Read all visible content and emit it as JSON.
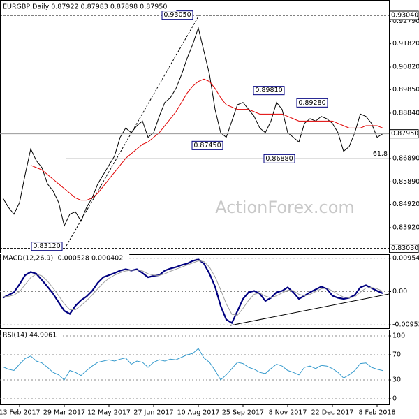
{
  "chart_data": [
    {
      "type": "line",
      "title": "EURGBP,Daily 0.87922 0.87983 0.87898 0.87950",
      "ylim": [
        0.829,
        0.9355
      ],
      "yticks": [
        {
          "value": 0.9279,
          "label": "0.92790"
        },
        {
          "value": 0.9182,
          "label": "0.91820"
        },
        {
          "value": 0.9082,
          "label": "0.90820"
        },
        {
          "value": 0.8985,
          "label": "0.89850"
        },
        {
          "value": 0.8884,
          "label": "0.88840"
        },
        {
          "value": 0.8689,
          "label": "0.86890"
        },
        {
          "value": 0.8589,
          "label": "0.85890"
        },
        {
          "value": 0.8492,
          "label": "0.84920"
        },
        {
          "value": 0.8392,
          "label": "0.83920"
        }
      ],
      "series": [
        {
          "color": "#000000",
          "values": [
            0.852,
            0.848,
            0.845,
            0.85,
            0.862,
            0.873,
            0.868,
            0.865,
            0.858,
            0.855,
            0.85,
            0.84,
            0.845,
            0.846,
            0.842,
            0.848,
            0.852,
            0.858,
            0.862,
            0.866,
            0.87,
            0.878,
            0.882,
            0.88,
            0.883,
            0.885,
            0.878,
            0.88,
            0.887,
            0.893,
            0.895,
            0.899,
            0.905,
            0.912,
            0.918,
            0.925,
            0.915,
            0.905,
            0.89,
            0.88,
            0.878,
            0.885,
            0.892,
            0.893,
            0.89,
            0.887,
            0.882,
            0.88,
            0.885,
            0.893,
            0.89,
            0.88,
            0.878,
            0.876,
            0.884,
            0.886,
            0.885,
            0.887,
            0.886,
            0.884,
            0.88,
            0.872,
            0.874,
            0.88,
            0.888,
            0.887,
            0.884,
            0.878,
            0.8795
          ]
        },
        {
          "color": "#e00000",
          "values": [
            null,
            null,
            null,
            null,
            null,
            0.866,
            0.865,
            0.864,
            0.862,
            0.86,
            0.858,
            0.856,
            0.854,
            0.852,
            0.851,
            0.851,
            0.852,
            0.854,
            0.857,
            0.86,
            0.863,
            0.866,
            0.869,
            0.871,
            0.873,
            0.875,
            0.876,
            0.878,
            0.88,
            0.883,
            0.886,
            0.889,
            0.893,
            0.897,
            0.9,
            0.902,
            0.903,
            0.902,
            0.899,
            0.895,
            0.892,
            0.891,
            0.89,
            0.89,
            0.89,
            0.889,
            0.888,
            0.888,
            0.888,
            0.888,
            0.888,
            0.887,
            0.886,
            0.885,
            0.885,
            0.885,
            0.885,
            0.885,
            0.885,
            0.885,
            0.884,
            0.883,
            0.882,
            0.882,
            0.882,
            0.883,
            0.883,
            0.883,
            0.882
          ]
        }
      ],
      "levels": [
        {
          "value": 0.9304,
          "label": "0.93040",
          "style": "dashed"
        },
        {
          "value": 0.8795,
          "label": "0.87950",
          "style": "solid"
        },
        {
          "value": 0.8303,
          "label": "0.83030",
          "style": "dashed"
        }
      ],
      "annotations": [
        {
          "value": 0.9305,
          "label": "0.93050"
        },
        {
          "value": 0.8981,
          "label": "0.89810"
        },
        {
          "value": 0.8928,
          "label": "0.89280"
        },
        {
          "value": 0.8745,
          "label": "0.87450"
        },
        {
          "value": 0.8688,
          "label": "0.86880"
        },
        {
          "value": 0.8312,
          "label": "0.83120"
        }
      ],
      "fib_label": 61.8,
      "watermark": "ActionForex.com"
    },
    {
      "type": "line",
      "title": "MACD(12,26,9) -0.000528 0.000402",
      "ylim": [
        -0.0101,
        0.0105
      ],
      "yticks": [
        0.00954,
        {
          "value": 0,
          "label": "0.00"
        },
        -0.009538
      ],
      "series": [
        {
          "color": "#000080",
          "values": [
            -0.0018,
            -0.001,
            -0.0002,
            0.0021,
            0.0047,
            0.0056,
            0.0051,
            0.0033,
            0.0014,
            -0.0006,
            -0.0031,
            -0.0055,
            -0.0064,
            -0.0041,
            -0.0025,
            -0.0014,
            0.0002,
            0.0025,
            0.0041,
            0.0047,
            0.0053,
            0.006,
            0.0064,
            0.006,
            0.0064,
            0.0053,
            0.0041,
            0.0045,
            0.0047,
            0.006,
            0.0066,
            0.007,
            0.0076,
            0.008,
            0.0088,
            0.0092,
            0.008,
            0.0051,
            0.0014,
            -0.0041,
            -0.008,
            -0.009,
            -0.0056,
            -0.0021,
            -0.0002,
            0.0002,
            -0.0006,
            -0.0027,
            -0.0018,
            -0.0002,
            0.0002,
            0.0012,
            -0.0002,
            -0.0021,
            -0.0012,
            -0.0002,
            0.0006,
            0.0014,
            0.0008,
            -0.0012,
            -0.0018,
            -0.0021,
            -0.0018,
            -0.001,
            0.0012,
            0.0018,
            0.001,
            0.0002,
            -0.0005
          ]
        },
        {
          "color": "#a0a0a0",
          "values": [
            -0.0015,
            -0.0014,
            -0.001,
            0.0,
            0.002,
            0.004,
            0.005,
            0.0045,
            0.003,
            0.001,
            -0.0012,
            -0.0035,
            -0.0052,
            -0.0052,
            -0.004,
            -0.0026,
            -0.001,
            0.0008,
            0.0025,
            0.0038,
            0.0047,
            0.0054,
            0.0059,
            0.0061,
            0.0062,
            0.0059,
            0.0051,
            0.0047,
            0.0046,
            0.0051,
            0.0058,
            0.0064,
            0.007,
            0.0076,
            0.0082,
            0.0088,
            0.0086,
            0.007,
            0.0042,
            0.0005,
            -0.0035,
            -0.0065,
            -0.0068,
            -0.0048,
            -0.0025,
            -0.0008,
            -0.0004,
            -0.0013,
            -0.0018,
            -0.0012,
            -0.0004,
            0.0004,
            0.0003,
            -0.0008,
            -0.0012,
            -0.0008,
            0.0,
            0.0008,
            0.001,
            0.0002,
            -0.0008,
            -0.0016,
            -0.0018,
            -0.0015,
            -0.0002,
            0.001,
            0.0012,
            0.0008,
            0.0001
          ]
        }
      ],
      "grid": true
    },
    {
      "type": "line",
      "title": "RSI(14) 44.9061",
      "ylim": [
        -7.8,
        106.7
      ],
      "yticks": [
        100,
        70,
        30,
        0
      ],
      "series": [
        {
          "color": "#3399cc",
          "values": [
            51,
            47,
            45,
            55,
            64,
            68,
            60,
            57,
            50,
            42,
            38,
            30,
            45,
            42,
            37,
            45,
            52,
            58,
            60,
            62,
            60,
            63,
            65,
            55,
            60,
            58,
            50,
            58,
            62,
            60,
            63,
            62,
            66,
            70,
            72,
            80,
            65,
            58,
            45,
            30,
            38,
            48,
            58,
            56,
            50,
            47,
            42,
            40,
            48,
            55,
            52,
            45,
            42,
            38,
            50,
            52,
            48,
            53,
            52,
            48,
            42,
            33,
            38,
            45,
            56,
            57,
            50,
            47,
            44.9
          ]
        }
      ],
      "grid": true,
      "categories": [
        null,
        null,
        null,
        "13 Feb 2017",
        null,
        null,
        null,
        null,
        null,
        null,
        null,
        "29 Mar 2017",
        null,
        null,
        null,
        null,
        null,
        null,
        null,
        "12 May 2017",
        null,
        null,
        null,
        null,
        null,
        null,
        null,
        "27 Jun 2017",
        null,
        null,
        null,
        null,
        null,
        null,
        null,
        "10 Aug 2017",
        null,
        null,
        null,
        null,
        null,
        null,
        null,
        "25 Sep 2017",
        null,
        null,
        null,
        null,
        null,
        null,
        null,
        "8 Nov 2017",
        null,
        null,
        null,
        null,
        null,
        null,
        null,
        "22 Dec 2017",
        null,
        null,
        null,
        null,
        null,
        null,
        null,
        "8 Feb 2018",
        null
      ]
    }
  ]
}
